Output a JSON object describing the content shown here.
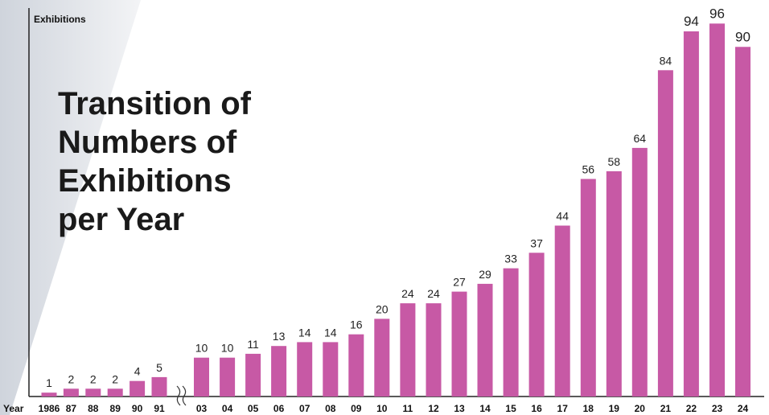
{
  "chart_data": {
    "type": "bar",
    "title_lines": [
      "Transition of",
      "Numbers of",
      "Exhibitions",
      "per Year"
    ],
    "ylabel": "Exhibitions",
    "xlabel": "Year",
    "ylim": [
      0,
      100
    ],
    "grid": false,
    "axis_break_after": "91",
    "categories": [
      "1986",
      "87",
      "88",
      "89",
      "90",
      "91",
      "03",
      "04",
      "05",
      "06",
      "07",
      "08",
      "09",
      "10",
      "11",
      "12",
      "13",
      "14",
      "15",
      "16",
      "17",
      "18",
      "19",
      "20",
      "21",
      "22",
      "23",
      "24"
    ],
    "values": [
      1,
      2,
      2,
      2,
      4,
      5,
      10,
      10,
      11,
      13,
      14,
      14,
      16,
      20,
      24,
      24,
      27,
      29,
      33,
      37,
      44,
      56,
      58,
      64,
      84,
      94,
      96,
      90
    ],
    "colors": {
      "bar": "#c759a5",
      "axis": "#222222"
    }
  }
}
